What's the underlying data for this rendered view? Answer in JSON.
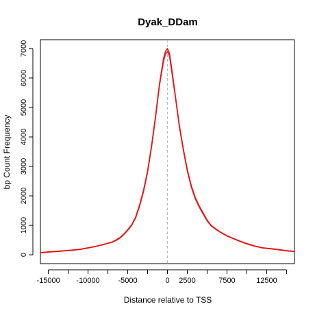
{
  "chart_data": {
    "type": "line",
    "title": "Dyak_DDam",
    "xlabel": "Distance relative to TSS",
    "ylabel": "bp Count Frequency",
    "xlim": [
      -16000,
      16000
    ],
    "ylim": [
      -300,
      7300
    ],
    "x_ticks": [
      -15000,
      -12500,
      -10000,
      -7500,
      -5000,
      -2500,
      0,
      2500,
      5000,
      7500,
      10000,
      12500,
      15000
    ],
    "x_tick_labels": [
      "-15000",
      "",
      "-10000",
      "",
      "-5000",
      "",
      "0",
      "2500",
      "",
      "7500",
      "",
      "12500",
      ""
    ],
    "y_ticks": [
      0,
      1000,
      2000,
      3000,
      4000,
      5000,
      6000,
      7000
    ],
    "y_tick_labels": [
      "0",
      "1000",
      "2000",
      "3000",
      "4000",
      "5000",
      "6000",
      "7000"
    ],
    "reference_line_x": 0,
    "grid": false,
    "series": [
      {
        "color": "#cc3333",
        "x": [
          -16000,
          -15000,
          -14000,
          -13000,
          -12000,
          -11000,
          -10000,
          -9000,
          -8000,
          -7000,
          -6500,
          -6000,
          -5500,
          -5000,
          -4500,
          -4000,
          -3500,
          -3000,
          -2500,
          -2000,
          -1500,
          -1000,
          -500,
          -250,
          0,
          250,
          500,
          1000,
          1500,
          2000,
          2500,
          3000,
          3500,
          4000,
          4500,
          5000,
          5500,
          6000,
          6500,
          7000,
          7500,
          8000,
          9000,
          10000,
          11000,
          12000,
          13000,
          14000,
          15000,
          16000
        ],
        "y": [
          60,
          90,
          110,
          130,
          150,
          180,
          230,
          280,
          350,
          420,
          480,
          560,
          680,
          830,
          1000,
          1250,
          1650,
          2150,
          2800,
          3650,
          4650,
          5750,
          6550,
          6800,
          6900,
          6750,
          6300,
          5350,
          4350,
          3550,
          2850,
          2300,
          1900,
          1620,
          1380,
          1150,
          980,
          880,
          790,
          710,
          640,
          580,
          470,
          370,
          290,
          230,
          200,
          170,
          130,
          110
        ]
      },
      {
        "color": "#ee1111",
        "x": [
          -16000,
          -15000,
          -14000,
          -13000,
          -12000,
          -11000,
          -10000,
          -9000,
          -8000,
          -7000,
          -6500,
          -6000,
          -5500,
          -5000,
          -4500,
          -4000,
          -3500,
          -3000,
          -2500,
          -2000,
          -1500,
          -1000,
          -500,
          -250,
          0,
          250,
          500,
          1000,
          1500,
          2000,
          2500,
          3000,
          3500,
          4000,
          4500,
          5000,
          5500,
          6000,
          6500,
          7000,
          7500,
          8000,
          9000,
          10000,
          11000,
          12000,
          13000,
          14000,
          15000,
          16000
        ],
        "y": [
          70,
          100,
          120,
          140,
          160,
          190,
          240,
          290,
          360,
          430,
          500,
          580,
          700,
          850,
          1020,
          1280,
          1700,
          2200,
          2850,
          3700,
          4700,
          5800,
          6650,
          6900,
          7000,
          6850,
          6400,
          5400,
          4400,
          3600,
          2900,
          2350,
          1950,
          1660,
          1420,
          1180,
          1000,
          900,
          800,
          720,
          650,
          590,
          480,
          380,
          300,
          240,
          210,
          180,
          140,
          120
        ]
      }
    ]
  }
}
